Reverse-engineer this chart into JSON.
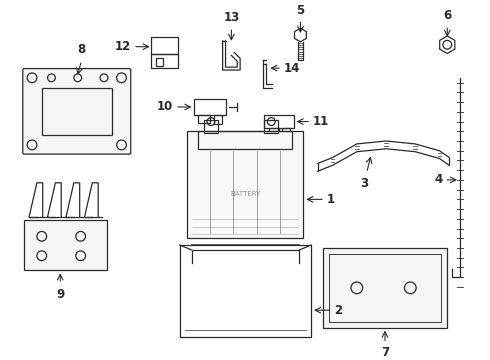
{
  "bg_color": "#ffffff",
  "line_color": "#2a2a2a",
  "label_color": "#111111",
  "lw": 0.9,
  "fontsize": 8.5
}
